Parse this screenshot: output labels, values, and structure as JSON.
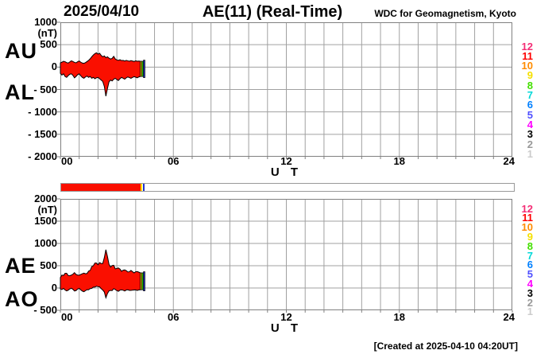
{
  "header": {
    "date": "2025/04/10",
    "title": "AE(11) (Real-Time)",
    "credit": "WDC for Geomagnetism, Kyoto"
  },
  "footer": {
    "created": "[Created at 2025-04-10 04:20UT]"
  },
  "colors": {
    "fill_red": "#fa0f00",
    "outline": "#000000",
    "grid": "#a0a0a0",
    "frame": "#808080",
    "end_marker_yellow": "#ffdd00",
    "end_marker_green": "#2ecc00",
    "end_marker_blue": "#2233cc"
  },
  "legend": {
    "meaning": "number of available stations",
    "items": [
      {
        "label": "12",
        "color": "#f42d75"
      },
      {
        "label": "11",
        "color": "#ff0000"
      },
      {
        "label": "10",
        "color": "#ff8c00"
      },
      {
        "label": "9",
        "color": "#f5e000"
      },
      {
        "label": "8",
        "color": "#44e000"
      },
      {
        "label": "7",
        "color": "#00d8d8"
      },
      {
        "label": "6",
        "color": "#0080ff"
      },
      {
        "label": "5",
        "color": "#5050ff"
      },
      {
        "label": "4",
        "color": "#ff00ff"
      },
      {
        "label": "3",
        "color": "#000000"
      },
      {
        "label": "2",
        "color": "#999999"
      },
      {
        "label": "1",
        "color": "#cccccc"
      }
    ]
  },
  "availability_bar": {
    "span_hours": 24,
    "segments": [
      {
        "color": "#fa0f00",
        "from_h": 0.0,
        "to_h": 4.2
      },
      {
        "color": "#ffdd00",
        "from_h": 4.2,
        "to_h": 4.29
      },
      {
        "color": "#ffffff",
        "from_h": 4.29,
        "to_h": 4.34
      },
      {
        "color": "#2233cc",
        "from_h": 4.34,
        "to_h": 4.43
      }
    ]
  },
  "chart_data": [
    {
      "type": "area",
      "panel": "upper",
      "left_labels": [
        "AU",
        "AL"
      ],
      "unit_label": "(nT)",
      "xlabel": "U T",
      "xlim_hours": [
        0,
        24
      ],
      "xticks": [
        {
          "hour": 0,
          "label": "00"
        },
        {
          "hour": 6,
          "label": "06"
        },
        {
          "hour": 12,
          "label": "12"
        },
        {
          "hour": 18,
          "label": "18"
        },
        {
          "hour": 24,
          "label": "24"
        }
      ],
      "ylim": [
        -2000,
        1000
      ],
      "yticks": [
        {
          "value": 1000,
          "label": "1000"
        },
        {
          "value": 500,
          "label": "500"
        },
        {
          "value": 0,
          "label": "0"
        },
        {
          "value": -500,
          "label": "- 500"
        },
        {
          "value": -1000,
          "label": "- 1000"
        },
        {
          "value": -1500,
          "label": "- 1500"
        },
        {
          "value": -2000,
          "label": "- 2000"
        }
      ],
      "sample_interval_min": 5,
      "data_start_hour": 0,
      "data_end_hour": 4.25,
      "series": [
        {
          "name": "AU",
          "values": [
            95,
            110,
            130,
            120,
            100,
            90,
            115,
            140,
            125,
            105,
            95,
            120,
            135,
            110,
            90,
            85,
            100,
            125,
            150,
            185,
            230,
            270,
            300,
            320,
            290,
            310,
            260,
            230,
            250,
            210,
            230,
            200,
            180,
            195,
            240,
            180,
            160,
            150,
            165,
            145,
            150,
            135,
            150,
            140,
            130,
            145,
            135,
            125,
            140,
            130,
            135,
            130
          ]
        },
        {
          "name": "AL",
          "values": [
            -140,
            -180,
            -150,
            -210,
            -230,
            -190,
            -160,
            -150,
            -185,
            -240,
            -210,
            -170,
            -150,
            -195,
            -230,
            -250,
            -220,
            -200,
            -230,
            -210,
            -250,
            -230,
            -260,
            -240,
            -230,
            -260,
            -290,
            -320,
            -430,
            -650,
            -480,
            -330,
            -290,
            -310,
            -270,
            -250,
            -280,
            -300,
            -260,
            -230,
            -250,
            -270,
            -240,
            -220,
            -235,
            -250,
            -230,
            -215,
            -225,
            -240,
            -220,
            -210
          ]
        }
      ],
      "end_markers": [
        {
          "name": "yellow",
          "color": "#ffdd00"
        },
        {
          "name": "green",
          "color": "#2ecc00"
        },
        {
          "name": "blue",
          "color": "#2233cc"
        }
      ]
    },
    {
      "type": "area",
      "panel": "lower",
      "left_labels": [
        "AE",
        "AO"
      ],
      "unit_label": "(nT)",
      "xlabel": "U T",
      "xlim_hours": [
        0,
        24
      ],
      "xticks": [
        {
          "hour": 0,
          "label": "00"
        },
        {
          "hour": 6,
          "label": "06"
        },
        {
          "hour": 12,
          "label": "12"
        },
        {
          "hour": 18,
          "label": "18"
        },
        {
          "hour": 24,
          "label": "24"
        }
      ],
      "ylim": [
        -500,
        2000
      ],
      "yticks": [
        {
          "value": 2000,
          "label": "2000"
        },
        {
          "value": 1500,
          "label": "1500"
        },
        {
          "value": 1000,
          "label": "1000"
        },
        {
          "value": 500,
          "label": "500"
        },
        {
          "value": 0,
          "label": "0"
        },
        {
          "value": -500,
          "label": "- 500"
        }
      ],
      "sample_interval_min": 5,
      "data_start_hour": 0,
      "data_end_hour": 4.25,
      "series": [
        {
          "name": "AE",
          "values": [
            235,
            290,
            280,
            330,
            330,
            280,
            275,
            290,
            310,
            345,
            305,
            290,
            285,
            305,
            320,
            335,
            320,
            325,
            380,
            395,
            480,
            500,
            560,
            560,
            520,
            570,
            550,
            550,
            680,
            860,
            710,
            530,
            470,
            505,
            510,
            430,
            440,
            450,
            425,
            375,
            400,
            405,
            390,
            360,
            365,
            395,
            365,
            340,
            365,
            370,
            355,
            340
          ]
        },
        {
          "name": "AO",
          "values": [
            -23,
            -35,
            -10,
            -45,
            -65,
            -50,
            -23,
            -5,
            -30,
            -68,
            -58,
            -25,
            -8,
            -43,
            -70,
            -83,
            -60,
            -38,
            -40,
            -13,
            -10,
            20,
            20,
            40,
            30,
            25,
            -15,
            -45,
            -90,
            -220,
            -125,
            -65,
            -55,
            -58,
            -15,
            -35,
            -60,
            -75,
            -48,
            -43,
            -50,
            -68,
            -45,
            -40,
            -53,
            -53,
            -48,
            -45,
            -43,
            -55,
            -43,
            -40
          ]
        }
      ],
      "end_markers": [
        {
          "name": "yellow",
          "color": "#ffdd00"
        },
        {
          "name": "green",
          "color": "#2ecc00"
        },
        {
          "name": "blue",
          "color": "#2233cc"
        }
      ]
    }
  ]
}
